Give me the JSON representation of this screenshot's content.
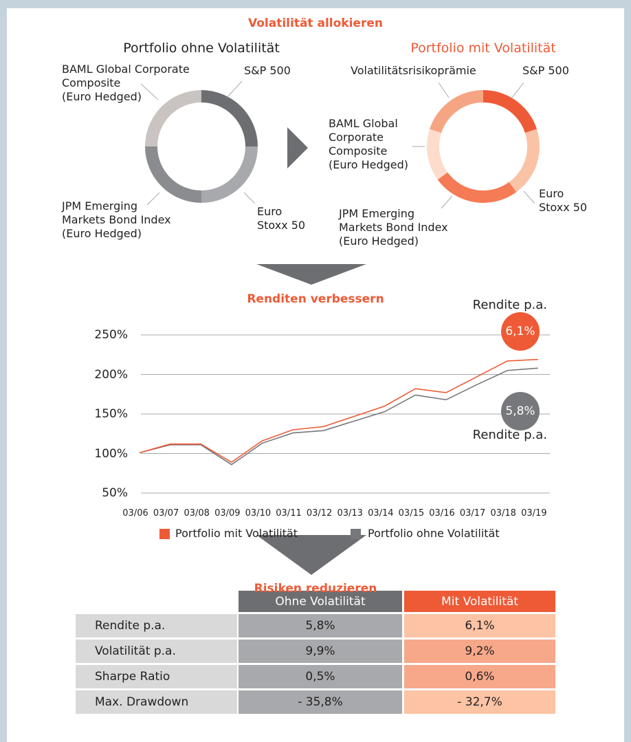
{
  "headings": [
    "Volatilität allokieren",
    "Renditen verbessern",
    "Risiken reduzieren"
  ],
  "chart_data": [
    {
      "type": "pie",
      "title": "Portfolio ohne Volatilität",
      "title_color": "#231f20",
      "categories": [
        "S&P 500",
        "Euro\nStoxx 50",
        "JPM Emerging\nMarkets Bond Index\n(Euro Hedged)",
        "BAML Global Corporate\nComposite\n(Euro Hedged)"
      ],
      "values": [
        25,
        25,
        25,
        25
      ],
      "colors": [
        "#6d6e71",
        "#a7a9ac",
        "#8a8c8f",
        "#c9c4c1"
      ]
    },
    {
      "type": "pie",
      "title": "Portfolio mit Volatilität",
      "title_color": "#ee5a36",
      "categories": [
        "S&P 500",
        "Euro\nStoxx 50",
        "JPM Emerging\nMarkets Bond Index\n(Euro Hedged)",
        "BAML Global\nCorporate\nComposite\n(Euro Hedged)",
        "Volatilitätsrisikoprämie"
      ],
      "values": [
        20,
        20,
        25,
        15,
        20
      ],
      "colors": [
        "#ee5a36",
        "#fbc3a6",
        "#f47b55",
        "#fddccb",
        "#f6a584"
      ]
    },
    {
      "type": "line",
      "categories": [
        "03/06",
        "03/07",
        "03/08",
        "03/09",
        "03/10",
        "03/11",
        "03/12",
        "03/13",
        "03/14",
        "03/15",
        "03/16",
        "03/17",
        "03/18",
        "03/19"
      ],
      "series": [
        {
          "name": "Portfolio mit Volatilität",
          "color": "#ee5a36",
          "values": [
            101,
            112,
            112,
            89,
            116,
            130,
            134,
            147,
            160,
            182,
            177,
            197,
            217,
            219
          ]
        },
        {
          "name": "Portfolio ohne Volatilität",
          "color": "#77787b",
          "values": [
            101,
            111,
            111,
            86,
            113,
            126,
            129,
            141,
            153,
            174,
            168,
            187,
            205,
            208
          ]
        }
      ],
      "ylim": [
        50,
        250
      ],
      "yticks": [
        {
          "value": 50,
          "label": "50%"
        },
        {
          "value": 100,
          "label": "100%"
        },
        {
          "value": 150,
          "label": "150%"
        },
        {
          "value": 200,
          "label": "200%"
        },
        {
          "value": 250,
          "label": "250%"
        }
      ],
      "grid": true,
      "annotations": [
        {
          "label": "6,1%",
          "caption": "Rendite p.a.",
          "color": "#ee5a36"
        },
        {
          "label": "5,8%",
          "caption": "Rendite p.a.",
          "color": "#77787b"
        }
      ]
    }
  ],
  "table": {
    "header": [
      "Ohne Volatilität",
      "Mit Volatilität"
    ],
    "rows": [
      [
        "Rendite p.a.",
        "5,8%",
        "6,1%"
      ],
      [
        "Volatilität p.a.",
        "9,9%",
        "9,2%"
      ],
      [
        "Sharpe Ratio",
        "0,5%",
        "0,6%"
      ],
      [
        "Max. Drawdown",
        "- 35,8%",
        "- 32,7%"
      ]
    ]
  }
}
